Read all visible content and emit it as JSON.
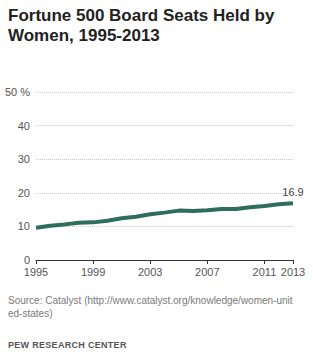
{
  "chart_data": {
    "type": "line",
    "title": "Fortune 500 Board Seats Held by Women, 1995-2013",
    "x": [
      1995,
      1996,
      1997,
      1998,
      1999,
      2000,
      2001,
      2002,
      2003,
      2004,
      2005,
      2006,
      2007,
      2008,
      2009,
      2010,
      2011,
      2012,
      2013
    ],
    "values": [
      9.6,
      10.2,
      10.6,
      11.1,
      11.2,
      11.7,
      12.4,
      12.9,
      13.6,
      14.1,
      14.7,
      14.6,
      14.8,
      15.2,
      15.2,
      15.7,
      16.1,
      16.6,
      16.9
    ],
    "value_labels": [
      null,
      null,
      null,
      null,
      null,
      null,
      null,
      null,
      null,
      null,
      null,
      null,
      null,
      null,
      null,
      null,
      null,
      null,
      "16.9"
    ],
    "data_labels": true,
    "color": "#2e6e5c",
    "xlim": [
      1995,
      2013
    ],
    "xticks": [
      1995,
      1999,
      2003,
      2007,
      2011,
      2013
    ],
    "ylim": [
      0,
      50
    ],
    "yticks": [
      0,
      10,
      20,
      30,
      40,
      {
        "value": 50,
        "label": "50 %"
      }
    ],
    "grid": true,
    "source": "Source: Catalyst (http://www.catalyst.org/knowledge/women-united-states)",
    "credit": "PEW RESEARCH CENTER"
  }
}
